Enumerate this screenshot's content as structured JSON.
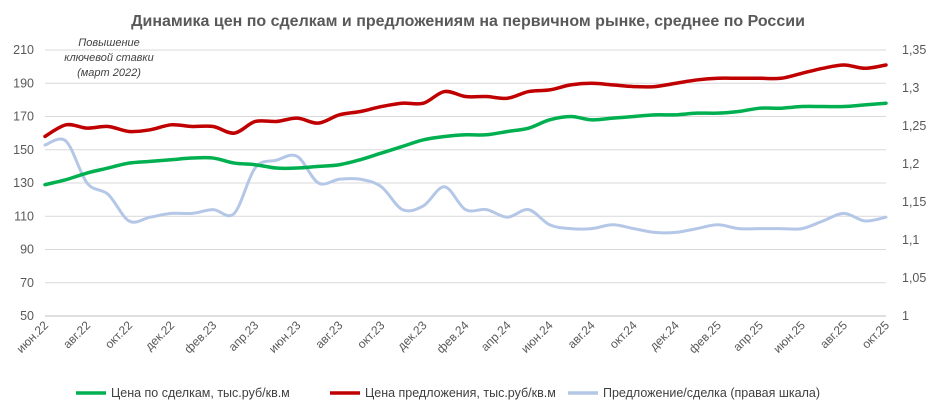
{
  "chart_data": {
    "type": "line",
    "title": "Динамика цен по сделкам и предложениям на первичном рынке, среднее по России",
    "xlabel": "",
    "ylabel": "",
    "x_tick_labels": [
      "июн.22",
      "авг.22",
      "окт.22",
      "дек.22",
      "фев.23",
      "апр.23",
      "июн.23",
      "авг.23",
      "окт.23",
      "дек.23",
      "фев.24",
      "апр.24",
      "июн.24",
      "авг.24",
      "окт.24",
      "дек.24",
      "фев.25",
      "апр.25",
      "июн.25",
      "авг.25",
      "окт.25"
    ],
    "x_months": [
      "июн.22",
      "июл.22",
      "авг.22",
      "сен.22",
      "окт.22",
      "ноя.22",
      "дек.22",
      "янв.23",
      "фев.23",
      "мар.23",
      "апр.23",
      "май.23",
      "июн.23",
      "июл.23",
      "авг.23",
      "сен.23",
      "окт.23",
      "ноя.23",
      "дек.23",
      "янв.24",
      "фев.24",
      "мар.24",
      "апр.24",
      "май.24",
      "июн.24",
      "июл.24",
      "авг.24",
      "сен.24",
      "окт.24",
      "ноя.24",
      "дек.24",
      "янв.25",
      "фев.25",
      "мар.25",
      "апр.25",
      "май.25",
      "июн.25",
      "июл.25",
      "авг.25",
      "сен.25",
      "окт.25"
    ],
    "y_left": {
      "ylim": [
        50,
        210
      ],
      "ticks": [
        "50",
        "70",
        "90",
        "110",
        "130",
        "150",
        "170",
        "190",
        "210"
      ]
    },
    "y_right": {
      "ylim": [
        1.0,
        1.35
      ],
      "ticks": [
        "1",
        "1,05",
        "1,1",
        "1,15",
        "1,2",
        "1,25",
        "1,3",
        "1,35"
      ]
    },
    "grid": true,
    "legend_position": "bottom",
    "series": [
      {
        "name": "Цена по сделкам, тыс.руб/кв.м",
        "axis": "left",
        "color": "#00B050",
        "values": [
          129,
          132,
          136,
          139,
          142,
          143,
          144,
          145,
          145,
          142,
          141,
          139,
          139,
          140,
          141,
          144,
          148,
          152,
          156,
          158,
          159,
          159,
          161,
          163,
          168,
          170,
          168,
          169,
          170,
          171,
          171,
          172,
          172,
          173,
          175,
          175,
          176,
          176,
          176,
          177,
          178
        ]
      },
      {
        "name": "Цена предложения, тыс.руб/кв.м",
        "axis": "left",
        "color": "#C00000",
        "values": [
          158,
          165,
          163,
          164,
          161,
          162,
          165,
          164,
          164,
          160,
          167,
          167,
          169,
          166,
          171,
          173,
          176,
          178,
          178,
          185,
          182,
          182,
          181,
          185,
          186,
          189,
          190,
          189,
          188,
          188,
          190,
          192,
          193,
          193,
          193,
          193,
          196,
          199,
          201,
          199,
          201
        ]
      },
      {
        "name": "Предложение/сделка (правая шкала)",
        "axis": "right",
        "color": "#B4C7E7",
        "values": [
          1.225,
          1.23,
          1.175,
          1.16,
          1.125,
          1.13,
          1.135,
          1.135,
          1.14,
          1.135,
          1.195,
          1.205,
          1.21,
          1.175,
          1.18,
          1.18,
          1.17,
          1.14,
          1.145,
          1.17,
          1.14,
          1.14,
          1.13,
          1.14,
          1.12,
          1.115,
          1.115,
          1.12,
          1.115,
          1.11,
          1.11,
          1.115,
          1.12,
          1.115,
          1.115,
          1.115,
          1.115,
          1.125,
          1.135,
          1.125,
          1.13
        ]
      }
    ],
    "annotation": [
      "Повышение",
      "ключевой ставки",
      "(март 2022)"
    ]
  }
}
